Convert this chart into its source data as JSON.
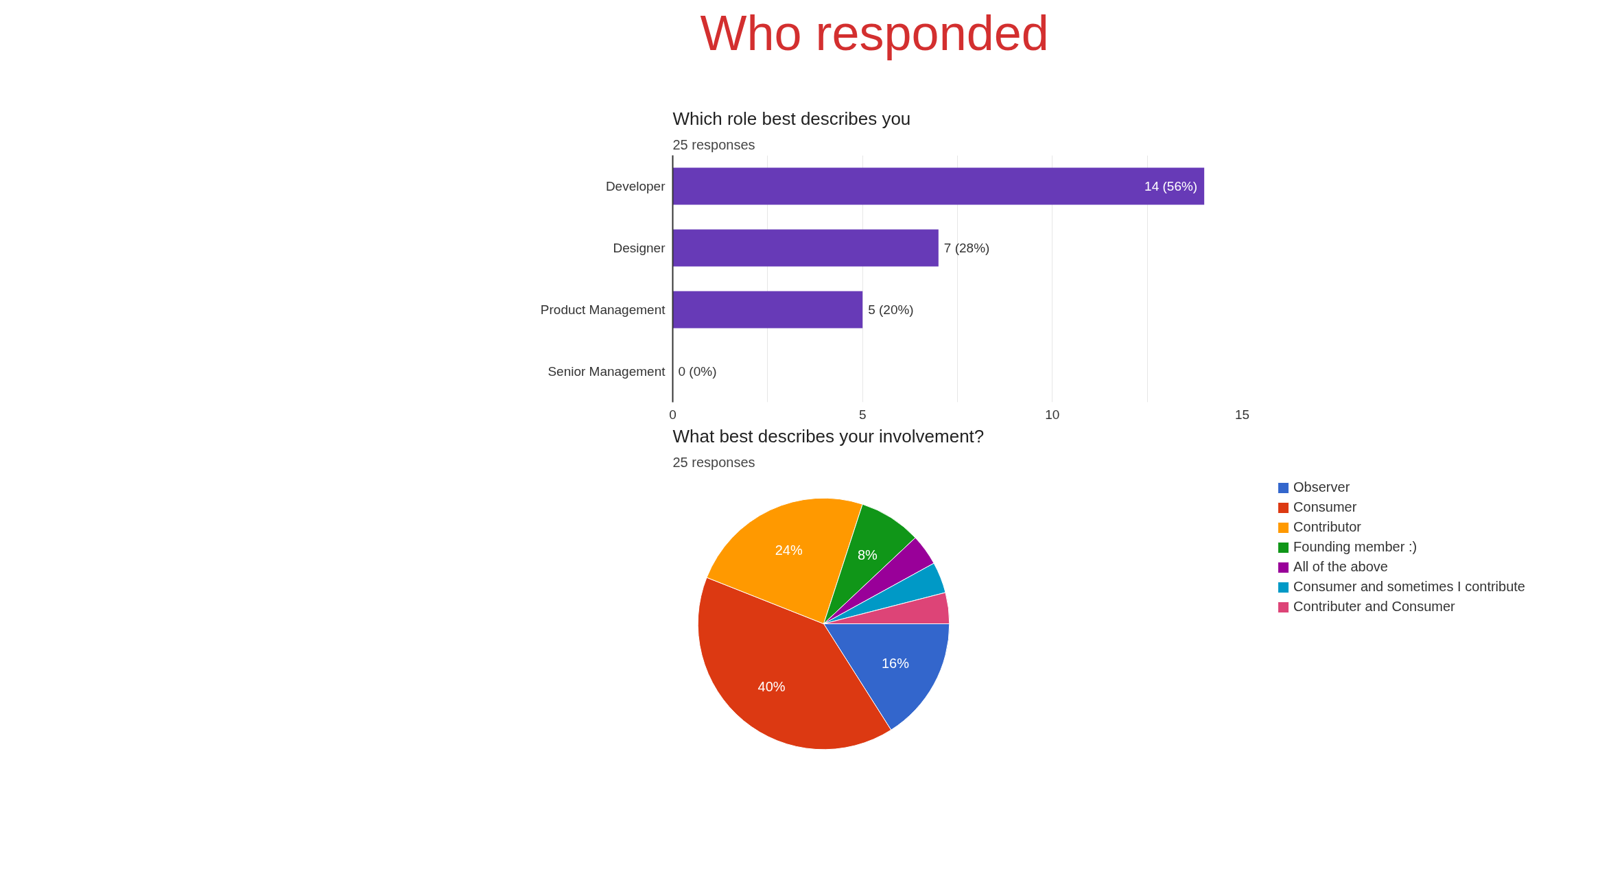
{
  "chart_data": [
    {
      "type": "other",
      "title": "Who responded"
    },
    {
      "type": "bar",
      "orientation": "horizontal",
      "title": "Which role best describes you",
      "subtitle": "25 responses",
      "categories": [
        "Developer",
        "Designer",
        "Product Management",
        "Senior Management"
      ],
      "values": [
        14,
        7,
        5,
        0
      ],
      "color": "#673ab7",
      "value_labels": [
        "14 (56%)",
        "7 (28%)",
        "5 (20%)",
        "0 (0%)"
      ],
      "xlim": [
        0,
        15
      ],
      "xticks": [
        0,
        {
          "value": 2.5,
          "label": null
        },
        5,
        {
          "value": 7.5,
          "label": null
        },
        10,
        {
          "value": 12.5,
          "label": null
        },
        15
      ],
      "grid": "x"
    },
    {
      "type": "pie",
      "title": "What best describes your involvement?",
      "subtitle": "25 responses",
      "categories": [
        "Observer",
        "Consumer",
        "Contributor",
        "Founding member :)",
        "All of the above",
        "Consumer and sometimes I contribute",
        "Contributer and Consumer"
      ],
      "values": [
        16,
        40,
        24,
        8,
        4,
        4,
        4
      ],
      "colors": [
        "#3366cc",
        "#dc3912",
        "#ff9900",
        "#109618",
        "#990099",
        "#0099c6",
        "#dd4477"
      ],
      "value_labels": [
        "16%",
        "40%",
        "24%",
        "8%",
        null,
        null,
        null
      ],
      "legend": "right"
    }
  ]
}
